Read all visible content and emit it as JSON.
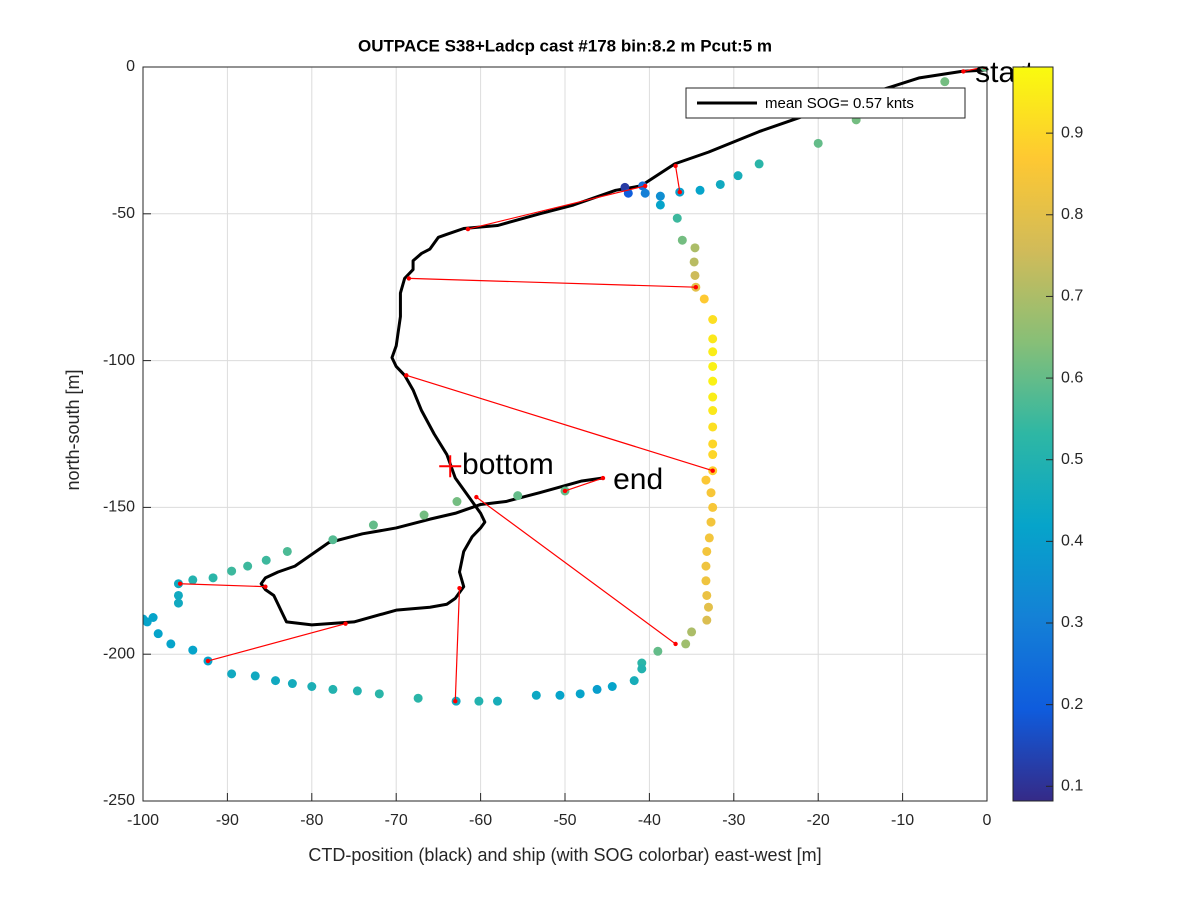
{
  "chart_data": {
    "type": "scatter",
    "title": "OUTPACE S38+Ladcp cast #178 bin:8.2 m  Pcut:5 m",
    "xlabel": "CTD-position (black) and ship (with SOG colorbar) east-west [m]",
    "ylabel": "north-south [m]",
    "xlim": [
      -100,
      0
    ],
    "ylim": [
      -250,
      0
    ],
    "xticks": [
      -100,
      -90,
      -80,
      -70,
      -60,
      -50,
      -40,
      -30,
      -20,
      -10,
      0
    ],
    "yticks": [
      -250,
      -200,
      -150,
      -100,
      -50,
      0
    ],
    "grid": true,
    "legend": "northeast",
    "colormap": "parula",
    "clim": [
      0.082,
      0.981
    ],
    "cticks": [
      0.1,
      0.2,
      0.3,
      0.4,
      0.5,
      0.6,
      0.7,
      0.8,
      0.9
    ],
    "ship": {
      "x": [
        -0.3,
        -5,
        -15.5,
        -20,
        -27,
        -29.5,
        -31.6,
        -34,
        -36.4,
        -38.7,
        -40.8,
        -42.9,
        -42.5,
        -40.5,
        -38.7,
        -36.7,
        -36.1,
        -34.6,
        -34.7,
        -34.6,
        -34.5,
        -33.5,
        -32.5,
        -32.5,
        -32.5,
        -32.5,
        -32.5,
        -32.5,
        -32.5,
        -32.5,
        -32.5,
        -32.5,
        -32.5,
        -33.3,
        -32.7,
        -32.5,
        -32.7,
        -32.9,
        -33.2,
        -33.3,
        -33.3,
        -33.2,
        -33,
        -33.2,
        -35,
        -35.7,
        -39,
        -40.9,
        -40.9,
        -41.8,
        -44.4,
        -46.2,
        -48.2,
        -50.6,
        -53.4,
        -58,
        -60.2,
        -62.9,
        -67.4,
        -72,
        -74.6,
        -77.5,
        -80,
        -82.3,
        -84.3,
        -86.7,
        -89.5,
        -92.3,
        -94.1,
        -96.7,
        -98.2,
        -99.5,
        -100,
        -98.8,
        -95.8,
        -95.8,
        -95.8,
        -94.1,
        -91.7,
        -89.5,
        -87.6,
        -85.4,
        -82.9,
        -77.5,
        -72.7,
        -66.7,
        -62.8,
        -55.6,
        -50
      ],
      "y": [
        0,
        -5,
        -18,
        -26,
        -33,
        -37,
        -40,
        -42,
        -42.6,
        -44,
        -40.5,
        -41,
        -43,
        -43,
        -47,
        -51.5,
        -59,
        -61.6,
        -66.4,
        -71,
        -75,
        -79,
        -86,
        -92.6,
        -97,
        -102,
        -107,
        -112.4,
        -117,
        -122.6,
        -128.4,
        -132,
        -137.5,
        -140.7,
        -145,
        -150,
        -155,
        -160.4,
        -165,
        -170,
        -175,
        -180,
        -184,
        -188.4,
        -192.4,
        -196.5,
        -199,
        -203,
        -205,
        -209,
        -211,
        -212,
        -213.5,
        -214,
        -214,
        -216,
        -216,
        -216,
        -215,
        -213.5,
        -212.5,
        -212,
        -211,
        -210,
        -209,
        -207.4,
        -206.7,
        -202.3,
        -198.6,
        -196.5,
        -193,
        -189,
        -188,
        -187.5,
        -182.6,
        -180,
        -176,
        -174.7,
        -174,
        -171.7,
        -170,
        -168,
        -165,
        -161,
        -156,
        -152.6,
        -148,
        -146,
        -144.4
      ],
      "sog": [
        0.6,
        0.62,
        0.62,
        0.6,
        0.52,
        0.47,
        0.45,
        0.42,
        0.4,
        0.35,
        0.25,
        0.12,
        0.2,
        0.3,
        0.42,
        0.55,
        0.62,
        0.7,
        0.72,
        0.75,
        0.8,
        0.87,
        0.92,
        0.94,
        0.95,
        0.96,
        0.96,
        0.95,
        0.94,
        0.92,
        0.9,
        0.9,
        0.88,
        0.86,
        0.85,
        0.85,
        0.84,
        0.84,
        0.84,
        0.83,
        0.83,
        0.82,
        0.8,
        0.78,
        0.7,
        0.68,
        0.6,
        0.52,
        0.5,
        0.47,
        0.42,
        0.4,
        0.42,
        0.42,
        0.44,
        0.47,
        0.5,
        0.45,
        0.52,
        0.52,
        0.5,
        0.5,
        0.48,
        0.46,
        0.45,
        0.45,
        0.45,
        0.42,
        0.42,
        0.42,
        0.42,
        0.42,
        0.42,
        0.42,
        0.45,
        0.45,
        0.45,
        0.5,
        0.52,
        0.55,
        0.55,
        0.55,
        0.57,
        0.58,
        0.6,
        0.62,
        0.62,
        0.6,
        0.6
      ]
    },
    "ctd": {
      "name": "mean SOG=  0.57 knts",
      "color": "#000000",
      "x": [
        0,
        -3,
        -8,
        -12.7,
        -15,
        -17,
        -20,
        -22,
        -27,
        -33,
        -37,
        -41,
        -44,
        -49,
        -53,
        -58,
        -62,
        -64,
        -65,
        -66,
        -67,
        -68,
        -68,
        -69,
        -69.5,
        -69.5,
        -70,
        -70.5,
        -70,
        -69,
        -68,
        -67,
        -65.5,
        -64,
        -63,
        -62,
        -61,
        -60,
        -59.5,
        -60,
        -61,
        -62,
        -62.5,
        -62,
        -63,
        -64,
        -66,
        -70,
        -75,
        -80,
        -83,
        -83.5,
        -84,
        -84.5,
        -85.5,
        -86,
        -85.5,
        -84,
        -82,
        -80,
        -78,
        -74,
        -70,
        -66,
        -63,
        -61,
        -60,
        -57,
        -53,
        -48,
        -45.5
      ],
      "y": [
        -1,
        -1.5,
        -3.7,
        -8,
        -10,
        -12,
        -14,
        -17,
        -22,
        -29,
        -33,
        -40.5,
        -42,
        -47,
        -50,
        -54,
        -55,
        -57,
        -58,
        -62,
        -63.5,
        -66,
        -69,
        -72,
        -77,
        -85,
        -95,
        -99,
        -102,
        -105,
        -110,
        -117,
        -125,
        -132,
        -140,
        -144,
        -148,
        -152,
        -155,
        -157,
        -160,
        -165,
        -172,
        -177,
        -181,
        -183,
        -184,
        -185,
        -189,
        -190,
        -189,
        -186,
        -183,
        -180,
        -178,
        -176,
        -174,
        -172,
        -170,
        -166,
        -162,
        -159,
        -157,
        -154,
        -152,
        -150,
        -149,
        -148,
        -145,
        -141,
        -140
      ]
    },
    "links": {
      "color": "#ff0000",
      "x": [
        [
          -2.8,
          -0.3
        ],
        [
          -36.9,
          -36.4
        ],
        [
          -61.5,
          -40.5
        ],
        [
          -68.5,
          -34.5
        ],
        [
          -68.8,
          -32.5
        ],
        [
          -45.5,
          -50
        ],
        [
          -60.5,
          -36.9
        ],
        [
          -62.5,
          -63
        ],
        [
          -76,
          -92.3
        ],
        [
          -85.5,
          -95.6
        ]
      ],
      "y": [
        [
          -1.5,
          0
        ],
        [
          -33.7,
          -42.6
        ],
        [
          -55.2,
          -40.5
        ],
        [
          -72,
          -75
        ],
        [
          -105,
          -137.5
        ],
        [
          -140,
          -144.4
        ],
        [
          -146.5,
          -196.5
        ],
        [
          -177.5,
          -216
        ],
        [
          -189.6,
          -202.3
        ],
        [
          -177,
          -176
        ]
      ]
    },
    "bottom_marker": {
      "x": -63.6,
      "y": -136,
      "color": "#ff0000"
    },
    "annotations": [
      {
        "text": "start",
        "x": -1.4,
        "y": -2.4
      },
      {
        "text": "bottom",
        "x": -62.2,
        "y": -136
      },
      {
        "text": "end",
        "x": -44.3,
        "y": -141
      }
    ]
  }
}
